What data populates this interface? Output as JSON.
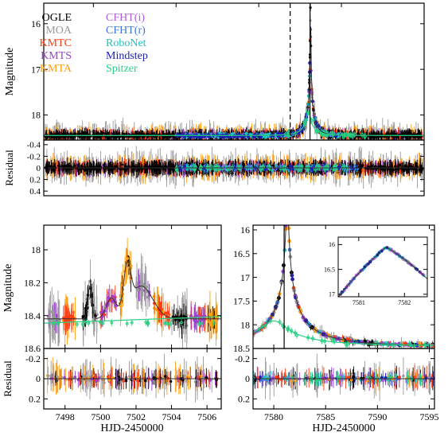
{
  "figure": {
    "top_ylabel": "Magnitude",
    "top_residual_ylabel": "Residual",
    "left_ylabel": "Magnitude",
    "left_residual_ylabel": "Residual",
    "bottom_xlabel_left": "HJD-2450000",
    "bottom_xlabel_right": "HJD-2450000"
  },
  "legend": [
    {
      "name": "OGLE",
      "color": "#000000"
    },
    {
      "name": "MOA",
      "color": "#999999"
    },
    {
      "name": "KMTC",
      "color": "#ff3b12"
    },
    {
      "name": "KMTS",
      "color": "#9b3fcf"
    },
    {
      "name": "KMTA",
      "color": "#ffa015"
    },
    {
      "name": "CFHT(i)",
      "color": "#b05ce0"
    },
    {
      "name": "CFHT(r)",
      "color": "#3f74d8"
    },
    {
      "name": "RoboNet",
      "color": "#1fc2c2"
    },
    {
      "name": "Mindstep",
      "color": "#1a1fb0"
    },
    {
      "name": "Spitzer",
      "color": "#29d084"
    }
  ],
  "chart_data": [
    {
      "id": "top",
      "type": "scatter",
      "xlim": [
        7420,
        7650
      ],
      "ylim": [
        18.55,
        15.55
      ],
      "xticks": [
        7450,
        7500,
        7550,
        7600,
        7650
      ],
      "yticks": [
        16,
        17,
        18
      ],
      "ylabel": "Magnitude",
      "vlines": [
        {
          "x": 7569,
          "style": "dashed"
        },
        {
          "x": 7581,
          "style": "solid"
        }
      ],
      "model_ground": {
        "x0": 7581.3,
        "u0": 0.01,
        "tE": 8,
        "base": 18.45,
        "amp": 0.95
      },
      "model_spitzer": {
        "x0": 7580,
        "u0": 0.1,
        "tE": 12,
        "base": 18.45,
        "amp": 0.9
      }
    },
    {
      "id": "top-residual",
      "type": "scatter",
      "xlim": [
        7420,
        7650
      ],
      "ylim": [
        0.48,
        -0.48
      ],
      "yticks": [
        0.4,
        0.2,
        0,
        -0.2,
        -0.4
      ],
      "yticklabels": [
        "0.4",
        "0.2",
        "0",
        "-0.2",
        "-0.4"
      ],
      "ylabel": "Residual"
    },
    {
      "id": "left",
      "type": "scatter",
      "xlim": [
        7496.8,
        7506.8
      ],
      "ylim": [
        18.6,
        17.85
      ],
      "xticks": [
        7498,
        7500,
        7502,
        7504,
        7506
      ],
      "yticks": [
        18,
        18.2,
        18.4,
        18.6
      ],
      "yticklabels": [
        "18",
        "18.2",
        "18.4",
        "18.6"
      ],
      "ylabel": "Magnitude"
    },
    {
      "id": "left-residual",
      "type": "scatter",
      "xlim": [
        7496.8,
        7506.8
      ],
      "ylim": [
        0.3,
        -0.3
      ],
      "xticks": [
        7498,
        7500,
        7502,
        7504,
        7506
      ],
      "yticks": [
        0.2,
        0,
        -0.2
      ],
      "yticklabels": [
        "0.2",
        "0",
        "-0.2"
      ],
      "ylabel": "Residual",
      "xlabel": "HJD-2450000"
    },
    {
      "id": "right",
      "type": "scatter",
      "xlim": [
        7578,
        7595.5
      ],
      "ylim": [
        18.5,
        15.9
      ],
      "xticks": [
        7580,
        7585,
        7590,
        7595
      ],
      "yticks": [
        16,
        16.5,
        17,
        17.5,
        18,
        18.5
      ],
      "yticklabels": [
        "16",
        "16.5",
        "17",
        "17.5",
        "18",
        "18.5"
      ],
      "vlines": [
        {
          "x": 7581,
          "style": "solid"
        }
      ]
    },
    {
      "id": "right-residual",
      "type": "scatter",
      "xlim": [
        7578,
        7595.5
      ],
      "ylim": [
        0.3,
        -0.3
      ],
      "xticks": [
        7580,
        7585,
        7590,
        7595
      ],
      "yticks": [
        0.2,
        0,
        -0.2
      ],
      "yticklabels": [
        "0.2",
        "0",
        "-0.2"
      ],
      "xlabel": "HJD-2450000"
    },
    {
      "id": "inset",
      "type": "scatter",
      "xlim": [
        7580.55,
        7582.5
      ],
      "ylim": [
        17.05,
        15.85
      ],
      "xticks": [
        7581,
        7582
      ],
      "yticks": [
        16,
        16.5,
        17
      ],
      "yticklabels": [
        "16",
        "16.5",
        "17"
      ]
    }
  ]
}
